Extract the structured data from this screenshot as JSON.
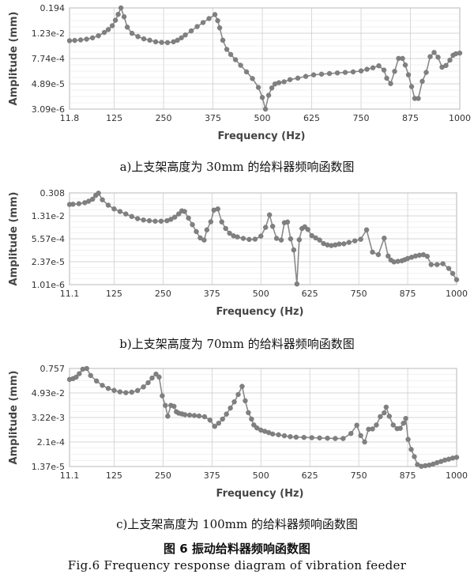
{
  "chart_data": [
    {
      "type": "line",
      "xlabel": "Frequency (Hz)",
      "ylabel": "Amplitude (mm)",
      "x_ticks": [
        "11.8",
        "125",
        "250",
        "375",
        "500",
        "625",
        "750",
        "875",
        "1000"
      ],
      "y_ticks": [
        "0.194",
        "1.23e-2",
        "7.74e-4",
        "4.89e-5",
        "3.09e-6"
      ],
      "y_scale": "log",
      "grid": true,
      "series": [
        {
          "x": [
            11.8,
            25,
            40,
            55,
            70,
            85,
            100,
            110,
            120,
            128,
            135,
            142,
            150,
            158,
            170,
            185,
            200,
            215,
            230,
            245,
            260,
            275,
            285,
            295,
            305,
            320,
            335,
            350,
            365,
            380,
            387,
            392,
            400,
            410,
            420,
            432,
            445,
            460,
            475,
            490,
            500,
            508,
            516,
            524,
            532,
            542,
            555,
            570,
            590,
            610,
            630,
            650,
            670,
            690,
            710,
            730,
            750,
            765,
            780,
            795,
            808,
            815,
            825,
            835,
            845,
            855,
            862,
            870,
            878,
            886,
            895,
            905,
            915,
            925,
            935,
            945,
            955,
            965,
            975,
            983,
            990,
            1000
          ],
          "values": [
            0.0054,
            0.0056,
            0.0059,
            0.0064,
            0.0074,
            0.0093,
            0.0133,
            0.0183,
            0.0277,
            0.0504,
            0.0958,
            0.1934,
            0.0734,
            0.0237,
            0.0121,
            0.0085,
            0.0066,
            0.0057,
            0.0048,
            0.0045,
            0.0044,
            0.0048,
            0.0057,
            0.0074,
            0.0101,
            0.0158,
            0.0253,
            0.0392,
            0.0608,
            0.0937,
            0.0483,
            0.0219,
            0.0057,
            0.0021,
            0.0012,
            0.00068,
            0.00037,
            0.00018,
            8.7e-05,
            3.3e-05,
            1.1e-05,
            3.1e-06,
            1.4e-05,
            3.1e-05,
            4.8e-05,
            5.5e-05,
            6.1e-05,
            7.7e-05,
            9.1e-05,
            0.00011,
            0.00013,
            0.00014,
            0.00015,
            0.00016,
            0.00017,
            0.00018,
            0.0002,
            0.00024,
            0.00028,
            0.00035,
            0.00022,
            9e-05,
            5e-05,
            0.00019,
            0.00078,
            0.00078,
            0.00038,
            0.00013,
            3.6e-05,
            9.9e-06,
            9.9e-06,
            6.4e-05,
            0.00017,
            0.00095,
            0.0015,
            0.00089,
            0.0003,
            0.00036,
            0.00065,
            0.0011,
            0.0013,
            0.0014
          ]
        }
      ],
      "caption": "a)上支架高度为 30mm 的给料器频响函数图"
    },
    {
      "type": "line",
      "xlabel": "Frequency (Hz)",
      "ylabel": "Amplitude (mm)",
      "x_ticks": [
        "11.1",
        "125",
        "250",
        "375",
        "500",
        "625",
        "750",
        "875",
        "1000"
      ],
      "y_ticks": [
        "0.308",
        "1.31e-2",
        "5.57e-4",
        "2.37e-5",
        "1.01e-6"
      ],
      "y_scale": "log",
      "grid": true,
      "series": [
        {
          "x": [
            11.1,
            20,
            35,
            50,
            60,
            70,
            78,
            85,
            95,
            110,
            125,
            140,
            155,
            170,
            185,
            200,
            215,
            230,
            245,
            260,
            270,
            280,
            290,
            298,
            305,
            315,
            325,
            335,
            345,
            355,
            362,
            372,
            380,
            390,
            400,
            410,
            420,
            430,
            440,
            455,
            470,
            485,
            500,
            512,
            522,
            530,
            540,
            552,
            560,
            568,
            576,
            584,
            592,
            598,
            605,
            612,
            620,
            630,
            640,
            650,
            660,
            670,
            680,
            690,
            700,
            712,
            725,
            740,
            755,
            770,
            785,
            800,
            815,
            825,
            832,
            840,
            850,
            860,
            867,
            875,
            885,
            895,
            905,
            915,
            925,
            935,
            950,
            965,
            980,
            990,
            1000
          ],
          "values": [
            0.063,
            0.065,
            0.07,
            0.08,
            0.098,
            0.13,
            0.218,
            0.298,
            0.12,
            0.057,
            0.034,
            0.024,
            0.017,
            0.012,
            0.0089,
            0.0074,
            0.0067,
            0.0063,
            0.0063,
            0.0067,
            0.0081,
            0.011,
            0.017,
            0.026,
            0.024,
            0.0097,
            0.0039,
            0.0015,
            0.00063,
            0.00047,
            0.0019,
            0.0058,
            0.029,
            0.034,
            0.0057,
            0.0023,
            0.0012,
            0.00084,
            0.00072,
            0.00059,
            0.00051,
            0.00053,
            0.00081,
            0.0027,
            0.015,
            0.0031,
            0.00059,
            0.00047,
            0.0051,
            0.0056,
            0.00055,
            0.00012,
            1.1e-06,
            0.00049,
            0.0023,
            0.0029,
            0.002,
            0.00086,
            0.00063,
            0.00047,
            0.00029,
            0.00024,
            0.00022,
            0.00024,
            0.00027,
            0.00028,
            0.00034,
            0.00042,
            0.00052,
            0.0019,
            8.9e-05,
            6.3e-05,
            0.00061,
            5.2e-05,
            3e-05,
            2.3e-05,
            2.5e-05,
            2.7e-05,
            3.1e-05,
            3.7e-05,
            4.4e-05,
            5.2e-05,
            5.8e-05,
            6.2e-05,
            5e-05,
            1.6e-05,
            1.6e-05,
            1.8e-05,
            9.4e-06,
            4.7e-06,
            2e-06
          ]
        }
      ],
      "caption": "b)上支架高度为 70mm 的给料器频响函数图"
    },
    {
      "type": "line",
      "xlabel": "Frequency (Hz)",
      "ylabel": "Amplitude (mm)",
      "x_ticks": [
        "11.1",
        "125",
        "250",
        "375",
        "500",
        "625",
        "750",
        "875",
        "1000"
      ],
      "y_ticks": [
        "0.757",
        "4.93e-2",
        "3.22e-3",
        "2.1e-4",
        "1.37e-5"
      ],
      "y_scale": "log",
      "grid": true,
      "series": [
        {
          "x": [
            11.1,
            20,
            28,
            36,
            45,
            55,
            65,
            80,
            95,
            110,
            125,
            140,
            155,
            170,
            185,
            200,
            212,
            222,
            232,
            240,
            248,
            256,
            262,
            270,
            278,
            284,
            290,
            298,
            306,
            318,
            330,
            342,
            356,
            370,
            382,
            392,
            402,
            412,
            422,
            432,
            442,
            452,
            460,
            468,
            476,
            482,
            490,
            500,
            510,
            520,
            530,
            545,
            560,
            575,
            590,
            610,
            630,
            650,
            670,
            690,
            710,
            730,
            745,
            755,
            765,
            775,
            785,
            795,
            805,
            815,
            820,
            828,
            838,
            848,
            856,
            864,
            870,
            876,
            884,
            892,
            900,
            910,
            920,
            930,
            940,
            950,
            960,
            970,
            980,
            990,
            1000
          ],
          "values": [
            0.222,
            0.244,
            0.287,
            0.422,
            0.698,
            0.757,
            0.345,
            0.188,
            0.115,
            0.082,
            0.066,
            0.056,
            0.051,
            0.054,
            0.065,
            0.097,
            0.155,
            0.261,
            0.406,
            0.29,
            0.036,
            0.0123,
            0.0037,
            0.0124,
            0.0112,
            0.0061,
            0.0052,
            0.0048,
            0.0044,
            0.0042,
            0.004,
            0.0038,
            0.0035,
            0.0024,
            0.0012,
            0.0017,
            0.0027,
            0.0047,
            0.0092,
            0.0183,
            0.0416,
            0.103,
            0.0207,
            0.0055,
            0.0027,
            0.0014,
            0.001,
            0.00079,
            0.00069,
            0.0006,
            0.00051,
            0.00047,
            0.00042,
            0.00038,
            0.00036,
            0.00035,
            0.00034,
            0.00033,
            0.00032,
            0.00031,
            0.00031,
            0.00054,
            0.00136,
            0.00043,
            0.00021,
            0.00087,
            0.0009,
            0.00139,
            0.00356,
            0.0054,
            0.0102,
            0.0037,
            0.0014,
            0.00093,
            0.00096,
            0.0017,
            0.0029,
            0.00028,
            9.2e-05,
            4.1e-05,
            1.7e-05,
            1.4e-05,
            1.5e-05,
            1.6e-05,
            1.8e-05,
            2.1e-05,
            2.4e-05,
            2.8e-05,
            3.1e-05,
            3.5e-05,
            3.8e-05
          ]
        }
      ],
      "caption": "c)上支架高度为 100mm 的给料器频响函数图"
    }
  ],
  "figure": {
    "title_cn": "图 6  振动给料器频响函数图",
    "title_en": "Fig.6 Frequency response diagram of vibration feeder"
  },
  "style": {
    "line_color": "#8a8a8a",
    "marker_color": "#808080",
    "grid_color": "#c8c8c8",
    "frame_color": "#888888"
  }
}
